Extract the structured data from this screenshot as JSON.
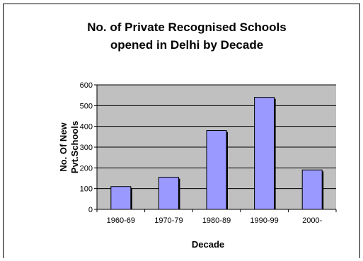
{
  "chart_data": {
    "type": "bar",
    "title_lines": [
      "No. of Private Recognised Schools",
      "opened in Delhi by Decade"
    ],
    "categories": [
      "1960-69",
      "1970-79",
      "1980-89",
      "1990-99",
      "2000-"
    ],
    "values": [
      110,
      155,
      380,
      540,
      190
    ],
    "xlabel": "Decade",
    "ylabel_lines": [
      "No. Of New",
      "Pvt.Schools"
    ],
    "ylim": [
      0,
      600
    ],
    "yticks": [
      0,
      100,
      200,
      300,
      400,
      500,
      600
    ],
    "grid": true,
    "legend": "none",
    "colors": {
      "plot_background": "#c0c0c0",
      "bar_fill": "#9999ff",
      "bar_stroke": "#000000",
      "grid": "#000000"
    }
  }
}
